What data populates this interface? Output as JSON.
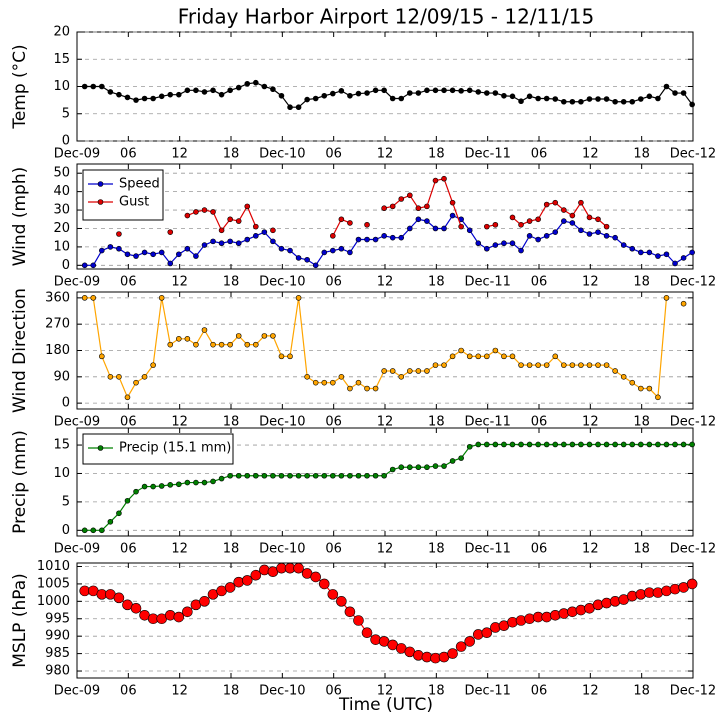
{
  "chart_data": [
    {
      "type": "line",
      "title": "Friday Harbor Airport 12/09/15 - 12/11/15",
      "ylabel": "Temp (°C)",
      "x": [
        0.9,
        1.9,
        2.9,
        3.9,
        4.9,
        5.9,
        6.9,
        7.9,
        8.9,
        9.9,
        10.9,
        11.9,
        12.9,
        13.9,
        14.9,
        15.9,
        16.9,
        17.9,
        18.9,
        19.9,
        20.9,
        21.9,
        22.9,
        23.9,
        24.9,
        25.9,
        26.9,
        27.9,
        28.9,
        29.9,
        30.9,
        31.9,
        32.9,
        33.9,
        34.9,
        35.9,
        36.9,
        37.9,
        38.9,
        39.9,
        40.9,
        41.9,
        42.9,
        43.9,
        44.9,
        45.9,
        46.9,
        47.9,
        48.9,
        49.9,
        50.9,
        51.9,
        52.9,
        53.9,
        54.9,
        55.9,
        56.9,
        57.9,
        58.9,
        59.9,
        60.9,
        61.9,
        62.9,
        63.9,
        64.9,
        65.9,
        66.9,
        67.9,
        68.9,
        69.9,
        70.9,
        71.9
      ],
      "series": [
        {
          "name": "Temp",
          "color": "#000000",
          "values": [
            10,
            10,
            10,
            9,
            8.5,
            8,
            7.5,
            7.8,
            7.8,
            8.2,
            8.5,
            8.5,
            9.3,
            9.3,
            9,
            9.3,
            8.5,
            9.3,
            9.8,
            10.5,
            10.7,
            10,
            9.5,
            8.3,
            6.2,
            6.2,
            7.6,
            7.8,
            8.3,
            8.7,
            9.2,
            8.3,
            8.7,
            8.8,
            9.3,
            9.3,
            7.8,
            7.8,
            8.8,
            8.8,
            9.3,
            9.3,
            9.3,
            9.3,
            9.2,
            9.3,
            9,
            8.8,
            8.8,
            8.3,
            8.2,
            7.3,
            8.2,
            7.8,
            7.8,
            7.7,
            7.2,
            7.2,
            7.2,
            7.7,
            7.7,
            7.7,
            7.2,
            7.2,
            7.2,
            7.7,
            8.2,
            7.8,
            10,
            8.8,
            8.8,
            6.7
          ]
        }
      ],
      "xlim": [
        0,
        72
      ],
      "xticks": [
        {
          "value": 0,
          "label": "Dec-09"
        },
        {
          "value": 6,
          "label": "06"
        },
        12,
        18,
        {
          "value": 24,
          "label": "Dec-10"
        },
        {
          "value": 30,
          "label": "06"
        },
        {
          "value": 36,
          "label": "12"
        },
        {
          "value": 42,
          "label": "18"
        },
        {
          "value": 48,
          "label": "Dec-11"
        },
        {
          "value": 54,
          "label": "06"
        },
        {
          "value": 60,
          "label": "12"
        },
        {
          "value": 66,
          "label": "18"
        },
        {
          "value": 72,
          "label": "Dec-12"
        }
      ],
      "ylim": [
        0,
        20
      ],
      "yticks": [
        0,
        5,
        10,
        15,
        20
      ],
      "grid": true
    },
    {
      "type": "line",
      "ylabel": "Wind (mph)",
      "x": [
        0.9,
        1.9,
        2.9,
        3.9,
        4.9,
        5.9,
        6.9,
        7.9,
        8.9,
        9.9,
        10.9,
        11.9,
        12.9,
        13.9,
        14.9,
        15.9,
        16.9,
        17.9,
        18.9,
        19.9,
        20.9,
        21.9,
        22.9,
        23.9,
        24.9,
        25.9,
        26.9,
        27.9,
        28.9,
        29.9,
        30.9,
        31.9,
        32.9,
        33.9,
        34.9,
        35.9,
        36.9,
        37.9,
        38.9,
        39.9,
        40.9,
        41.9,
        42.9,
        43.9,
        44.9,
        45.9,
        46.9,
        47.9,
        48.9,
        49.9,
        50.9,
        51.9,
        52.9,
        53.9,
        54.9,
        55.9,
        56.9,
        57.9,
        58.9,
        59.9,
        60.9,
        61.9,
        62.9,
        63.9,
        64.9,
        65.9,
        66.9,
        67.9,
        68.9,
        69.9,
        70.9,
        71.9
      ],
      "series": [
        {
          "name": "Speed",
          "color": "#0000cc",
          "values": [
            0,
            0,
            8,
            10,
            9,
            6,
            5,
            7,
            6,
            7,
            1,
            6,
            9,
            5,
            11,
            13,
            12,
            13,
            12,
            14,
            16,
            18,
            13,
            9,
            8,
            4,
            3,
            0,
            7,
            8,
            9,
            7,
            14,
            14,
            14,
            16,
            15,
            15,
            20,
            25,
            24,
            20,
            20,
            27,
            25,
            19,
            12,
            9,
            11,
            12,
            12,
            8,
            16,
            14,
            16,
            18,
            24,
            23,
            19,
            17,
            18,
            16,
            15,
            11,
            9,
            7,
            7,
            5,
            6,
            1,
            4,
            7
          ]
        },
        {
          "name": "Gust",
          "color": "#dd0000",
          "values": [
            null,
            null,
            null,
            null,
            17,
            null,
            null,
            null,
            null,
            null,
            18,
            null,
            27,
            29,
            30,
            29,
            19,
            25,
            24,
            32,
            21,
            null,
            19,
            null,
            null,
            null,
            null,
            null,
            null,
            16,
            25,
            23,
            null,
            22,
            null,
            31,
            32,
            36,
            38,
            31,
            32,
            46,
            47,
            34,
            21,
            null,
            null,
            21,
            22,
            null,
            26,
            22,
            24,
            25,
            33,
            34,
            30,
            27,
            34,
            26,
            25,
            21,
            null,
            null,
            null,
            null,
            null,
            null,
            null,
            null,
            null,
            null
          ]
        }
      ],
      "xlim": [
        0,
        72
      ],
      "xticks": [
        {
          "value": 0,
          "label": "Dec-09"
        },
        {
          "value": 6,
          "label": "06"
        },
        12,
        18,
        {
          "value": 24,
          "label": "Dec-10"
        },
        {
          "value": 30,
          "label": "06"
        },
        {
          "value": 36,
          "label": "12"
        },
        {
          "value": 42,
          "label": "18"
        },
        {
          "value": 48,
          "label": "Dec-11"
        },
        {
          "value": 54,
          "label": "06"
        },
        {
          "value": 60,
          "label": "12"
        },
        {
          "value": 66,
          "label": "18"
        },
        {
          "value": 72,
          "label": "Dec-12"
        }
      ],
      "ylim": [
        -2,
        55
      ],
      "yticks": [
        0,
        10,
        20,
        30,
        40,
        50
      ],
      "grid": true,
      "legend": "upper left"
    },
    {
      "type": "line",
      "ylabel": "Wind Direction",
      "x": [
        0.9,
        1.9,
        2.9,
        3.9,
        4.9,
        5.9,
        6.9,
        7.9,
        8.9,
        9.9,
        10.9,
        11.9,
        12.9,
        13.9,
        14.9,
        15.9,
        16.9,
        17.9,
        18.9,
        19.9,
        20.9,
        21.9,
        22.9,
        23.9,
        24.9,
        25.9,
        26.9,
        27.9,
        28.9,
        29.9,
        30.9,
        31.9,
        32.9,
        33.9,
        34.9,
        35.9,
        36.9,
        37.9,
        38.9,
        39.9,
        40.9,
        41.9,
        42.9,
        43.9,
        44.9,
        45.9,
        46.9,
        47.9,
        48.9,
        49.9,
        50.9,
        51.9,
        52.9,
        53.9,
        54.9,
        55.9,
        56.9,
        57.9,
        58.9,
        59.9,
        60.9,
        61.9,
        62.9,
        63.9,
        64.9,
        65.9,
        66.9,
        67.9,
        68.9,
        69.9,
        70.9,
        71.9
      ],
      "series": [
        {
          "name": "Wind Direction",
          "color": "#ffa500",
          "values": [
            360,
            360,
            160,
            90,
            90,
            20,
            70,
            90,
            130,
            360,
            200,
            220,
            220,
            200,
            250,
            200,
            200,
            200,
            230,
            200,
            200,
            230,
            230,
            160,
            160,
            360,
            90,
            70,
            70,
            70,
            90,
            50,
            70,
            50,
            50,
            110,
            110,
            90,
            110,
            110,
            110,
            130,
            130,
            160,
            180,
            160,
            160,
            160,
            180,
            160,
            160,
            130,
            130,
            130,
            130,
            160,
            130,
            130,
            130,
            130,
            130,
            130,
            110,
            90,
            70,
            50,
            50,
            20,
            360,
            null,
            340,
            null
          ]
        }
      ],
      "xlim": [
        0,
        72
      ],
      "xticks": [
        {
          "value": 0,
          "label": "Dec-09"
        },
        {
          "value": 6,
          "label": "06"
        },
        12,
        18,
        {
          "value": 24,
          "label": "Dec-10"
        },
        {
          "value": 30,
          "label": "06"
        },
        {
          "value": 36,
          "label": "12"
        },
        {
          "value": 42,
          "label": "18"
        },
        {
          "value": 48,
          "label": "Dec-11"
        },
        {
          "value": 54,
          "label": "06"
        },
        {
          "value": 60,
          "label": "12"
        },
        {
          "value": 66,
          "label": "18"
        },
        {
          "value": 72,
          "label": "Dec-12"
        }
      ],
      "ylim": [
        -20,
        380
      ],
      "yticks": [
        0,
        90,
        180,
        270,
        360
      ],
      "grid": true
    },
    {
      "type": "line",
      "ylabel": "Precip (mm)",
      "x": [
        0.9,
        1.9,
        2.9,
        3.9,
        4.9,
        5.9,
        6.9,
        7.9,
        8.9,
        9.9,
        10.9,
        11.9,
        12.9,
        13.9,
        14.9,
        15.9,
        16.9,
        17.9,
        18.9,
        19.9,
        20.9,
        21.9,
        22.9,
        23.9,
        24.9,
        25.9,
        26.9,
        27.9,
        28.9,
        29.9,
        30.9,
        31.9,
        32.9,
        33.9,
        34.9,
        35.9,
        36.9,
        37.9,
        38.9,
        39.9,
        40.9,
        41.9,
        42.9,
        43.9,
        44.9,
        45.9,
        46.9,
        47.9,
        48.9,
        49.9,
        50.9,
        51.9,
        52.9,
        53.9,
        54.9,
        55.9,
        56.9,
        57.9,
        58.9,
        59.9,
        60.9,
        61.9,
        62.9,
        63.9,
        64.9,
        65.9,
        66.9,
        67.9,
        68.9,
        69.9,
        70.9,
        71.9
      ],
      "series": [
        {
          "name": "Precip (15.1 mm)",
          "color": "#008000",
          "values": [
            0,
            0,
            0,
            1.5,
            3,
            5.2,
            6.8,
            7.7,
            7.7,
            7.8,
            8,
            8.1,
            8.4,
            8.4,
            8.4,
            8.6,
            9.1,
            9.6,
            9.6,
            9.6,
            9.6,
            9.6,
            9.6,
            9.6,
            9.6,
            9.6,
            9.6,
            9.6,
            9.6,
            9.6,
            9.6,
            9.6,
            9.6,
            9.6,
            9.6,
            9.6,
            10.7,
            11.1,
            11.1,
            11.1,
            11.1,
            11.3,
            11.3,
            12.2,
            12.7,
            14.7,
            15.1,
            15.1,
            15.1,
            15.1,
            15.1,
            15.1,
            15.1,
            15.1,
            15.1,
            15.1,
            15.1,
            15.1,
            15.1,
            15.1,
            15.1,
            15.1,
            15.1,
            15.1,
            15.1,
            15.1,
            15.1,
            15.1,
            15.1,
            15.1,
            15.1,
            15.1
          ]
        }
      ],
      "xlim": [
        0,
        72
      ],
      "xticks": [
        {
          "value": 0,
          "label": "Dec-09"
        },
        {
          "value": 6,
          "label": "06"
        },
        12,
        18,
        {
          "value": 24,
          "label": "Dec-10"
        },
        {
          "value": 30,
          "label": "06"
        },
        {
          "value": 36,
          "label": "12"
        },
        {
          "value": 42,
          "label": "18"
        },
        {
          "value": 48,
          "label": "Dec-11"
        },
        {
          "value": 54,
          "label": "06"
        },
        {
          "value": 60,
          "label": "12"
        },
        {
          "value": 66,
          "label": "18"
        },
        {
          "value": 72,
          "label": "Dec-12"
        }
      ],
      "ylim": [
        -1,
        18
      ],
      "yticks": [
        0,
        5,
        10,
        15
      ],
      "grid": true,
      "legend": "upper left"
    },
    {
      "type": "line",
      "ylabel": "MSLP (hPa)",
      "xlabel": "Time (UTC)",
      "x": [
        0.9,
        1.9,
        2.9,
        3.9,
        4.9,
        5.9,
        6.9,
        7.9,
        8.9,
        9.9,
        10.9,
        11.9,
        12.9,
        13.9,
        14.9,
        15.9,
        16.9,
        17.9,
        18.9,
        19.9,
        20.9,
        21.9,
        22.9,
        23.9,
        24.9,
        25.9,
        26.9,
        27.9,
        28.9,
        29.9,
        30.9,
        31.9,
        32.9,
        33.9,
        34.9,
        35.9,
        36.9,
        37.9,
        38.9,
        39.9,
        40.9,
        41.9,
        42.9,
        43.9,
        44.9,
        45.9,
        46.9,
        47.9,
        48.9,
        49.9,
        50.9,
        51.9,
        52.9,
        53.9,
        54.9,
        55.9,
        56.9,
        57.9,
        58.9,
        59.9,
        60.9,
        61.9,
        62.9,
        63.9,
        64.9,
        65.9,
        66.9,
        67.9,
        68.9,
        69.9,
        70.9,
        71.9
      ],
      "series": [
        {
          "name": "MSLP",
          "color": "#ff0000",
          "values": [
            1003,
            1003,
            1002,
            1002,
            1001,
            999,
            998,
            996,
            995,
            995,
            996,
            995.5,
            997,
            999,
            1000,
            1002,
            1003,
            1004,
            1005.5,
            1006,
            1007.5,
            1009,
            1008.5,
            1009.5,
            1009.5,
            1009.5,
            1008,
            1007,
            1005,
            1002,
            1000,
            997,
            994.5,
            991,
            989,
            988.5,
            987.5,
            986.5,
            985.5,
            984.5,
            984,
            983.7,
            984,
            985,
            987,
            988.5,
            990.5,
            991,
            992.5,
            993,
            994,
            994.5,
            995,
            995.5,
            995.5,
            996,
            996.5,
            997,
            997.5,
            998,
            999,
            999.5,
            1000,
            1000.5,
            1001.5,
            1002,
            1002.5,
            1002.5,
            1003,
            1003.5,
            1004,
            1005
          ]
        }
      ],
      "xlim": [
        0,
        72
      ],
      "xticks": [
        {
          "value": 0,
          "label": "Dec-09"
        },
        {
          "value": 6,
          "label": "06"
        },
        12,
        18,
        {
          "value": 24,
          "label": "Dec-10"
        },
        {
          "value": 30,
          "label": "06"
        },
        {
          "value": 36,
          "label": "12"
        },
        {
          "value": 42,
          "label": "18"
        },
        {
          "value": 48,
          "label": "Dec-11"
        },
        {
          "value": 54,
          "label": "06"
        },
        {
          "value": 60,
          "label": "12"
        },
        {
          "value": 66,
          "label": "18"
        },
        {
          "value": 72,
          "label": "Dec-12"
        }
      ],
      "ylim": [
        978,
        1011
      ],
      "yticks": [
        980,
        985,
        990,
        995,
        1000,
        1005,
        1010
      ],
      "grid": true
    }
  ]
}
